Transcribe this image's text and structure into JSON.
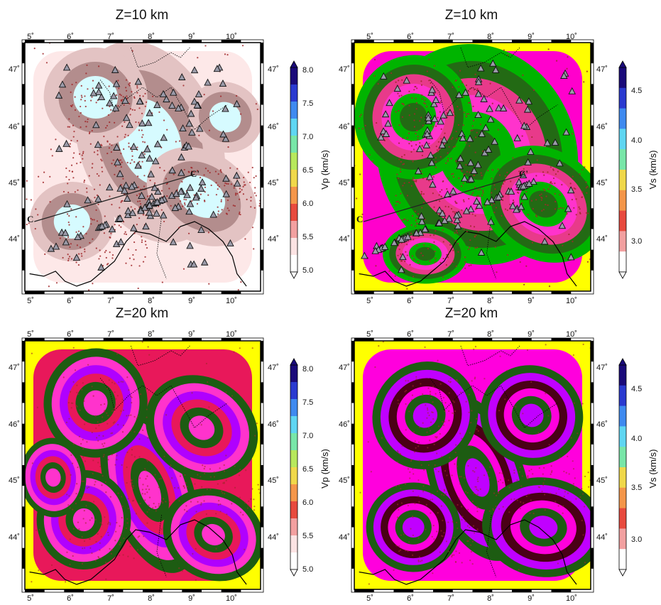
{
  "panels": [
    {
      "title": "Z=10 km",
      "colorbar": {
        "label": "Vp (km/s)",
        "ticks": [
          "8.0",
          "7.5",
          "7.0",
          "6.5",
          "6.0",
          "5.5",
          "5.0"
        ]
      },
      "lon_ticks": [
        "5˚",
        "6˚",
        "7˚",
        "8˚",
        "9˚",
        "10˚"
      ],
      "lat_ticks": [
        "47˚",
        "46˚",
        "45˚",
        "44˚"
      ],
      "profile_labels": [
        "C",
        "C'"
      ],
      "palette": [
        "#ffffff",
        "#fde8e8",
        "#e3c3c3",
        "#b38d8d",
        "#d6fbff",
        "#aef0ff"
      ],
      "show_stations": true
    },
    {
      "title": "Z=10 km",
      "colorbar": {
        "label": "Vs (km/s)",
        "ticks": [
          "4.5",
          "4.0",
          "3.5",
          "3.0"
        ]
      },
      "lon_ticks": [
        "5˚",
        "6˚",
        "7˚",
        "8˚",
        "9˚",
        "10˚"
      ],
      "lat_ticks": [
        "47˚",
        "46˚",
        "45˚",
        "44˚"
      ],
      "profile_labels": [
        "C",
        "C'"
      ],
      "palette": [
        "#ffff00",
        "#ff00cc",
        "#00b400",
        "#236a14",
        "#e83a8a",
        "#ff33cc"
      ],
      "show_stations": true
    },
    {
      "title": "Z=20 km",
      "colorbar": {
        "label": "Vp (km/s)",
        "ticks": [
          "8.0",
          "7.5",
          "7.0",
          "6.5",
          "6.0",
          "5.5",
          "5.0"
        ]
      },
      "lon_ticks": [
        "5˚",
        "6˚",
        "7˚",
        "8˚",
        "9˚",
        "10˚"
      ],
      "lat_ticks": [
        "47˚",
        "46˚",
        "45˚",
        "44˚"
      ],
      "profile_labels": [],
      "palette": [
        "#ffff00",
        "#e8185a",
        "#1d5c12",
        "#ff33cc",
        "#b000ff",
        "#e8185a"
      ],
      "show_stations": false
    },
    {
      "title": "Z=20 km",
      "colorbar": {
        "label": "Vs (km/s)",
        "ticks": [
          "4.5",
          "4.0",
          "3.5",
          "3.0"
        ]
      },
      "lon_ticks": [
        "5˚",
        "6˚",
        "7˚",
        "8˚",
        "9˚",
        "10˚"
      ],
      "lat_ticks": [
        "47˚",
        "46˚",
        "45˚",
        "44˚"
      ],
      "profile_labels": [],
      "palette": [
        "#ffff00",
        "#ff00dd",
        "#1d5c12",
        "#c000ff",
        "#4a0016",
        "#ff00dd"
      ],
      "show_stations": false
    }
  ],
  "colors": {
    "earthquake": "#a0282a",
    "station_fill": "#9a9aa8",
    "station_stroke": "#111111",
    "frame": "#000000"
  }
}
